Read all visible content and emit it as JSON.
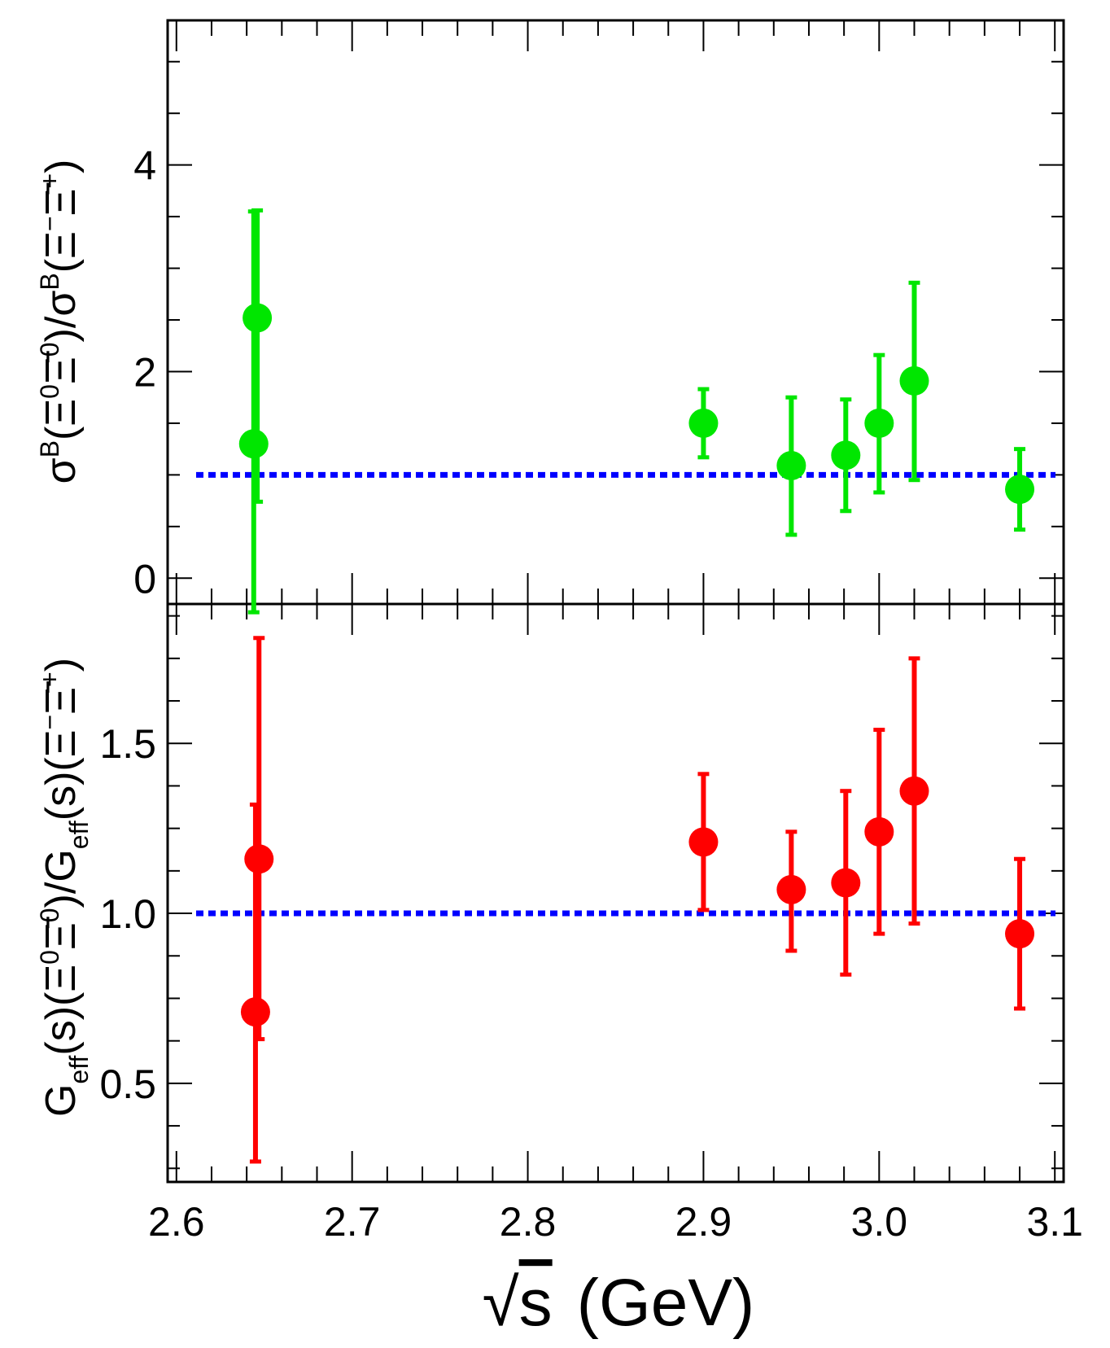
{
  "chart_data": [
    {
      "type": "scatter",
      "panel": "top",
      "ylabel_parts": [
        "σ",
        "B",
        "(Ξ",
        "0",
        "Ξ̄",
        "0",
        ")/σ",
        "B",
        "(Ξ",
        "−",
        "Ξ̄",
        "+",
        ")"
      ],
      "ylim": [
        -0.25,
        5.4
      ],
      "y_ticks": [
        0,
        2,
        4
      ],
      "y_tick_labels": [
        "0",
        "2",
        "4"
      ],
      "marker_color": "#00e600",
      "reference_line": {
        "y": 1.0,
        "color": "#0000ff",
        "style": "dotted"
      },
      "points": [
        {
          "x": 2.644,
          "y": 1.3,
          "yerr_low": 1.63,
          "yerr_high": 2.25
        },
        {
          "x": 2.646,
          "y": 2.52,
          "yerr_low": 1.78,
          "yerr_high": 1.04
        },
        {
          "x": 2.9,
          "y": 1.5,
          "yerr_low": 0.33,
          "yerr_high": 0.33
        },
        {
          "x": 2.95,
          "y": 1.09,
          "yerr_low": 0.67,
          "yerr_high": 0.66
        },
        {
          "x": 2.981,
          "y": 1.19,
          "yerr_low": 0.54,
          "yerr_high": 0.54
        },
        {
          "x": 3.0,
          "y": 1.5,
          "yerr_low": 0.67,
          "yerr_high": 0.66
        },
        {
          "x": 3.02,
          "y": 1.91,
          "yerr_low": 0.96,
          "yerr_high": 0.95
        },
        {
          "x": 3.08,
          "y": 0.86,
          "yerr_low": 0.39,
          "yerr_high": 0.39
        }
      ]
    },
    {
      "type": "scatter",
      "panel": "bottom",
      "ylabel_parts": [
        "G",
        "eff",
        "(s)(Ξ",
        "0",
        "Ξ̄",
        "0",
        ")/G",
        "eff",
        "(s)(Ξ",
        "−",
        "Ξ̄",
        "+",
        ")"
      ],
      "ylim": [
        0.21,
        1.91
      ],
      "y_ticks": [
        0.5,
        1.0,
        1.5
      ],
      "y_tick_labels": [
        "0.5",
        "1.0",
        "1.5"
      ],
      "marker_color": "#ff0000",
      "reference_line": {
        "y": 1.0,
        "color": "#0000ff",
        "style": "dotted"
      },
      "points": [
        {
          "x": 2.645,
          "y": 0.71,
          "yerr_low": 0.44,
          "yerr_high": 0.61
        },
        {
          "x": 2.647,
          "y": 1.16,
          "yerr_low": 0.53,
          "yerr_high": 0.65
        },
        {
          "x": 2.9,
          "y": 1.21,
          "yerr_low": 0.2,
          "yerr_high": 0.2
        },
        {
          "x": 2.95,
          "y": 1.07,
          "yerr_low": 0.18,
          "yerr_high": 0.17
        },
        {
          "x": 2.981,
          "y": 1.09,
          "yerr_low": 0.27,
          "yerr_high": 0.27
        },
        {
          "x": 3.0,
          "y": 1.24,
          "yerr_low": 0.3,
          "yerr_high": 0.3
        },
        {
          "x": 3.02,
          "y": 1.36,
          "yerr_low": 0.39,
          "yerr_high": 0.39
        },
        {
          "x": 3.08,
          "y": 0.94,
          "yerr_low": 0.22,
          "yerr_high": 0.22
        }
      ]
    }
  ],
  "x_axis": {
    "xlim": [
      2.595,
      3.105
    ],
    "ticks": [
      2.6,
      2.7,
      2.8,
      2.9,
      3.0,
      3.1
    ],
    "tick_labels": [
      "2.6",
      "2.7",
      "2.8",
      "2.9",
      "3.0",
      "3.1"
    ],
    "label_sqrt": "√",
    "label_s": "s",
    "label_unit": "(GeV)"
  }
}
